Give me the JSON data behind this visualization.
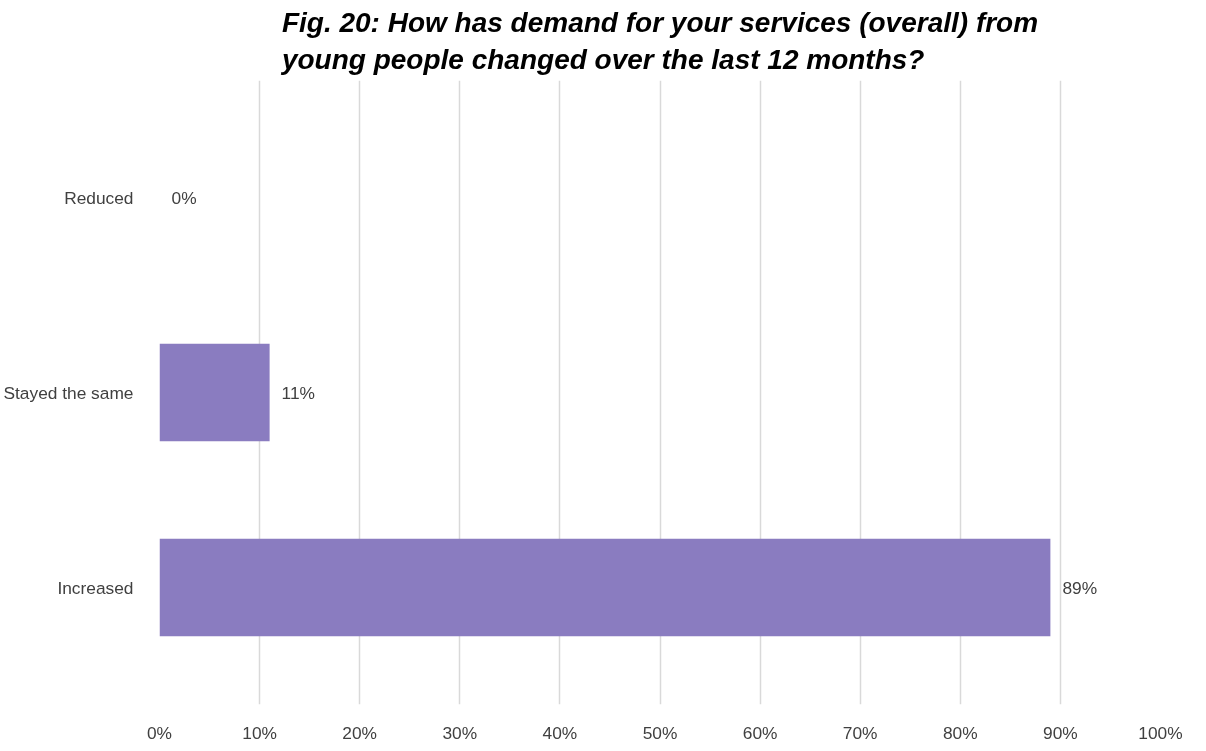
{
  "chart_data": {
    "type": "bar",
    "orientation": "horizontal",
    "title": "Fig. 20: How has demand for your services (overall) from\nyoung people changed over the last 12 months?",
    "categories": [
      "Reduced",
      "Stayed the same",
      "Increased"
    ],
    "values": [
      0,
      11,
      89
    ],
    "color": "#8a7cc0",
    "value_labels": [
      "0%",
      "11%",
      "89%"
    ],
    "xlim": [
      0,
      100
    ],
    "xticks": [
      {
        "value": 0,
        "label": "0%"
      },
      {
        "value": 10,
        "label": "10%"
      },
      {
        "value": 20,
        "label": "20%"
      },
      {
        "value": 30,
        "label": "30%"
      },
      {
        "value": 40,
        "label": "40%"
      },
      {
        "value": 50,
        "label": "50%"
      },
      {
        "value": 60,
        "label": "60%"
      },
      {
        "value": 70,
        "label": "70%"
      },
      {
        "value": 80,
        "label": "80%"
      },
      {
        "value": 90,
        "label": "90%"
      },
      {
        "value": 100,
        "label": "100%"
      }
    ],
    "grid": "x"
  }
}
